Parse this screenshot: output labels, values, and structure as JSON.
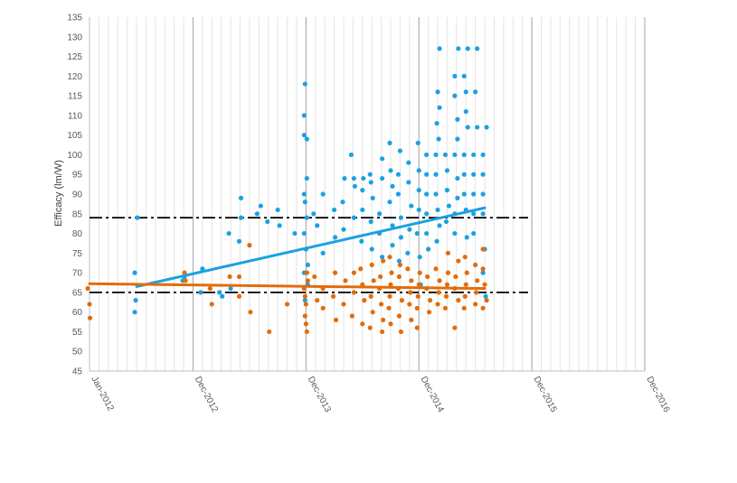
{
  "chart_data": {
    "type": "scatter",
    "title": "",
    "ylabel": "Efficacy (lm/W)",
    "xlabel": "",
    "ylim": [
      45,
      135
    ],
    "yticks": [
      45,
      50,
      55,
      60,
      65,
      70,
      75,
      80,
      85,
      90,
      95,
      100,
      105,
      110,
      115,
      120,
      125,
      130,
      135
    ],
    "xlim": [
      "2012-01",
      "2016-12"
    ],
    "xtick_labels": [
      "Jan-2012",
      "Dec-2012",
      "Dec-2013",
      "Dec-2014",
      "Dec-2015",
      "Dec-2016"
    ],
    "xtick_dates": [
      "2012-01",
      "2012-12",
      "2013-12",
      "2014-12",
      "2015-12",
      "2016-12"
    ],
    "grid": "vertical major and minor gridlines",
    "legend": "none",
    "colors": {
      "blue": "#1ba1e2",
      "orange": "#e36c0a",
      "reference": "#000000"
    },
    "reference_lines": [
      {
        "y": 84,
        "style": "dash-dot",
        "color": "#000000"
      },
      {
        "y": 65,
        "style": "dash-dot",
        "color": "#000000"
      }
    ],
    "series": [
      {
        "color": "#1ba1e2",
        "trendline": {
          "start": [
            "2012-06",
            66.5
          ],
          "end": [
            "2015-07",
            86.5
          ]
        },
        "points": [
          [
            "2012-06",
            84
          ],
          [
            "2012-06",
            70
          ],
          [
            "2012-06",
            63
          ],
          [
            "2012-06",
            60
          ],
          [
            "2012-11",
            69
          ],
          [
            "2012-11",
            68
          ],
          [
            "2013-01",
            65
          ],
          [
            "2013-01",
            71
          ],
          [
            "2013-03",
            64
          ],
          [
            "2013-03",
            65
          ],
          [
            "2013-04",
            66
          ],
          [
            "2013-05",
            89
          ],
          [
            "2013-05",
            84
          ],
          [
            "2013-05",
            78
          ],
          [
            "2013-04",
            80
          ],
          [
            "2013-07",
            87
          ],
          [
            "2013-07",
            85
          ],
          [
            "2013-08",
            83
          ],
          [
            "2013-09",
            82
          ],
          [
            "2013-09",
            86
          ],
          [
            "2013-11",
            80
          ],
          [
            "2013-12",
            118
          ],
          [
            "2013-12",
            110
          ],
          [
            "2013-12",
            105
          ],
          [
            "2013-12",
            104
          ],
          [
            "2013-12",
            94
          ],
          [
            "2013-12",
            90
          ],
          [
            "2013-12",
            88
          ],
          [
            "2013-12",
            84
          ],
          [
            "2013-12",
            80
          ],
          [
            "2013-12",
            76
          ],
          [
            "2013-12",
            72
          ],
          [
            "2013-12",
            70
          ],
          [
            "2013-12",
            67
          ],
          [
            "2013-12",
            63
          ],
          [
            "2014-01",
            85
          ],
          [
            "2014-01",
            82
          ],
          [
            "2014-02",
            75
          ],
          [
            "2014-02",
            90
          ],
          [
            "2014-03",
            86
          ],
          [
            "2014-03",
            79
          ],
          [
            "2014-04",
            94
          ],
          [
            "2014-04",
            88
          ],
          [
            "2014-04",
            81
          ],
          [
            "2014-05",
            100
          ],
          [
            "2014-05",
            94
          ],
          [
            "2014-05",
            92
          ],
          [
            "2014-05",
            84
          ],
          [
            "2014-06",
            94
          ],
          [
            "2014-06",
            91
          ],
          [
            "2014-06",
            86
          ],
          [
            "2014-06",
            78
          ],
          [
            "2014-07",
            95
          ],
          [
            "2014-07",
            93
          ],
          [
            "2014-07",
            89
          ],
          [
            "2014-07",
            83
          ],
          [
            "2014-07",
            76
          ],
          [
            "2014-08",
            99
          ],
          [
            "2014-08",
            94
          ],
          [
            "2014-08",
            85
          ],
          [
            "2014-08",
            80
          ],
          [
            "2014-08",
            74
          ],
          [
            "2014-09",
            103
          ],
          [
            "2014-09",
            96
          ],
          [
            "2014-09",
            92
          ],
          [
            "2014-09",
            88
          ],
          [
            "2014-09",
            82
          ],
          [
            "2014-09",
            77
          ],
          [
            "2014-10",
            101
          ],
          [
            "2014-10",
            95
          ],
          [
            "2014-10",
            90
          ],
          [
            "2014-10",
            84
          ],
          [
            "2014-10",
            79
          ],
          [
            "2014-10",
            73
          ],
          [
            "2014-11",
            98
          ],
          [
            "2014-11",
            93
          ],
          [
            "2014-11",
            87
          ],
          [
            "2014-11",
            81
          ],
          [
            "2014-11",
            75
          ],
          [
            "2014-12",
            103
          ],
          [
            "2014-12",
            96
          ],
          [
            "2014-12",
            91
          ],
          [
            "2014-12",
            86
          ],
          [
            "2014-12",
            80
          ],
          [
            "2014-12",
            74
          ],
          [
            "2014-12",
            67
          ],
          [
            "2015-01",
            100
          ],
          [
            "2015-01",
            95
          ],
          [
            "2015-01",
            90
          ],
          [
            "2015-01",
            85
          ],
          [
            "2015-01",
            80
          ],
          [
            "2015-01",
            76
          ],
          [
            "2015-02",
            127
          ],
          [
            "2015-02",
            116
          ],
          [
            "2015-02",
            112
          ],
          [
            "2015-02",
            108
          ],
          [
            "2015-02",
            104
          ],
          [
            "2015-02",
            100
          ],
          [
            "2015-02",
            95
          ],
          [
            "2015-02",
            90
          ],
          [
            "2015-02",
            86
          ],
          [
            "2015-02",
            82
          ],
          [
            "2015-02",
            78
          ],
          [
            "2015-03",
            100
          ],
          [
            "2015-03",
            96
          ],
          [
            "2015-03",
            91
          ],
          [
            "2015-03",
            87
          ],
          [
            "2015-03",
            83
          ],
          [
            "2015-04",
            127
          ],
          [
            "2015-04",
            120
          ],
          [
            "2015-04",
            115
          ],
          [
            "2015-04",
            109
          ],
          [
            "2015-04",
            104
          ],
          [
            "2015-04",
            100
          ],
          [
            "2015-04",
            94
          ],
          [
            "2015-04",
            89
          ],
          [
            "2015-04",
            85
          ],
          [
            "2015-04",
            80
          ],
          [
            "2015-05",
            127
          ],
          [
            "2015-05",
            120
          ],
          [
            "2015-05",
            116
          ],
          [
            "2015-05",
            111
          ],
          [
            "2015-05",
            107
          ],
          [
            "2015-05",
            100
          ],
          [
            "2015-05",
            95
          ],
          [
            "2015-05",
            90
          ],
          [
            "2015-05",
            86
          ],
          [
            "2015-05",
            79
          ],
          [
            "2015-06",
            127
          ],
          [
            "2015-06",
            116
          ],
          [
            "2015-06",
            107
          ],
          [
            "2015-06",
            100
          ],
          [
            "2015-06",
            95
          ],
          [
            "2015-06",
            90
          ],
          [
            "2015-06",
            85
          ],
          [
            "2015-06",
            80
          ],
          [
            "2015-07",
            107
          ],
          [
            "2015-07",
            100
          ],
          [
            "2015-07",
            95
          ],
          [
            "2015-07",
            90
          ],
          [
            "2015-07",
            85
          ],
          [
            "2015-07",
            76
          ],
          [
            "2015-07",
            70
          ],
          [
            "2015-07",
            64
          ]
        ]
      },
      {
        "color": "#e36c0a",
        "trendline": {
          "start": [
            "2012-01",
            67.2
          ],
          "end": [
            "2015-07",
            66.0
          ]
        },
        "points": [
          [
            "2012-01",
            66
          ],
          [
            "2012-01",
            62
          ],
          [
            "2012-01",
            58.5
          ],
          [
            "2012-11",
            70
          ],
          [
            "2012-11",
            68
          ],
          [
            "2013-02",
            62
          ],
          [
            "2013-02",
            66
          ],
          [
            "2013-04",
            69
          ],
          [
            "2013-05",
            69
          ],
          [
            "2013-05",
            64
          ],
          [
            "2013-06",
            77
          ],
          [
            "2013-06",
            60
          ],
          [
            "2013-08",
            55
          ],
          [
            "2013-10",
            62
          ],
          [
            "2013-12",
            70
          ],
          [
            "2013-12",
            68
          ],
          [
            "2013-12",
            66
          ],
          [
            "2013-12",
            64
          ],
          [
            "2013-12",
            62
          ],
          [
            "2013-12",
            59
          ],
          [
            "2013-12",
            57
          ],
          [
            "2013-12",
            55
          ],
          [
            "2014-01",
            69
          ],
          [
            "2014-01",
            63
          ],
          [
            "2014-02",
            66
          ],
          [
            "2014-02",
            61
          ],
          [
            "2014-03",
            70
          ],
          [
            "2014-03",
            64
          ],
          [
            "2014-03",
            58
          ],
          [
            "2014-04",
            68
          ],
          [
            "2014-04",
            62
          ],
          [
            "2014-05",
            70
          ],
          [
            "2014-05",
            65
          ],
          [
            "2014-05",
            59
          ],
          [
            "2014-06",
            71
          ],
          [
            "2014-06",
            67
          ],
          [
            "2014-06",
            63
          ],
          [
            "2014-06",
            57
          ],
          [
            "2014-07",
            72
          ],
          [
            "2014-07",
            68
          ],
          [
            "2014-07",
            64
          ],
          [
            "2014-07",
            60
          ],
          [
            "2014-07",
            56
          ],
          [
            "2014-08",
            73
          ],
          [
            "2014-08",
            69
          ],
          [
            "2014-08",
            66
          ],
          [
            "2014-08",
            62
          ],
          [
            "2014-08",
            58
          ],
          [
            "2014-08",
            55
          ],
          [
            "2014-09",
            74
          ],
          [
            "2014-09",
            70
          ],
          [
            "2014-09",
            67
          ],
          [
            "2014-09",
            64
          ],
          [
            "2014-09",
            61
          ],
          [
            "2014-09",
            57
          ],
          [
            "2014-10",
            72
          ],
          [
            "2014-10",
            69
          ],
          [
            "2014-10",
            66
          ],
          [
            "2014-10",
            63
          ],
          [
            "2014-10",
            59
          ],
          [
            "2014-10",
            55
          ],
          [
            "2014-11",
            71
          ],
          [
            "2014-11",
            68
          ],
          [
            "2014-11",
            65
          ],
          [
            "2014-11",
            62
          ],
          [
            "2014-11",
            58
          ],
          [
            "2014-12",
            70
          ],
          [
            "2014-12",
            67
          ],
          [
            "2014-12",
            64
          ],
          [
            "2014-12",
            61
          ],
          [
            "2014-12",
            56
          ],
          [
            "2015-01",
            69
          ],
          [
            "2015-01",
            66
          ],
          [
            "2015-01",
            63
          ],
          [
            "2015-01",
            60
          ],
          [
            "2015-02",
            71
          ],
          [
            "2015-02",
            68
          ],
          [
            "2015-02",
            65
          ],
          [
            "2015-02",
            62
          ],
          [
            "2015-03",
            75
          ],
          [
            "2015-03",
            70
          ],
          [
            "2015-03",
            67
          ],
          [
            "2015-03",
            64
          ],
          [
            "2015-03",
            61
          ],
          [
            "2015-04",
            73
          ],
          [
            "2015-04",
            69
          ],
          [
            "2015-04",
            66
          ],
          [
            "2015-04",
            63
          ],
          [
            "2015-04",
            56
          ],
          [
            "2015-05",
            74
          ],
          [
            "2015-05",
            70
          ],
          [
            "2015-05",
            67
          ],
          [
            "2015-05",
            64
          ],
          [
            "2015-05",
            61
          ],
          [
            "2015-06",
            72
          ],
          [
            "2015-06",
            68
          ],
          [
            "2015-06",
            65
          ],
          [
            "2015-06",
            62
          ],
          [
            "2015-07",
            76
          ],
          [
            "2015-07",
            71
          ],
          [
            "2015-07",
            67
          ],
          [
            "2015-07",
            63
          ],
          [
            "2015-07",
            61
          ]
        ]
      }
    ]
  }
}
